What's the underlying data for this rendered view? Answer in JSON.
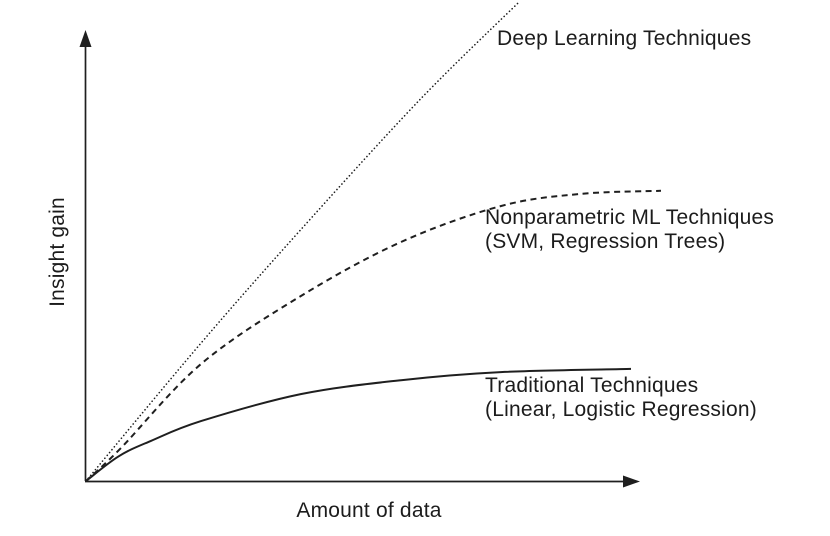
{
  "figure": {
    "background_color": "#ffffff",
    "ink_color": "#1f1f1f"
  },
  "chart_data": {
    "type": "line",
    "title": "",
    "xlabel": "Amount of data",
    "ylabel": "Insight gain",
    "grid": false,
    "legend_position": "inline-annotations",
    "x_axis": {
      "has_arrow": true,
      "ticks": []
    },
    "y_axis": {
      "has_arrow": true,
      "ticks": []
    },
    "xlim": [
      0,
      1
    ],
    "ylim": [
      0,
      1
    ],
    "series": [
      {
        "name": "Deep Learning Techniques",
        "line_style": "dotted",
        "annotation": {
          "line1": "Deep Learning Techniques",
          "line2": ""
        },
        "points": [
          [
            0,
            0
          ],
          [
            0.21,
            0.305
          ],
          [
            0.39,
            0.553
          ],
          [
            0.61,
            0.844
          ],
          [
            0.795,
            1.065
          ]
        ]
      },
      {
        "name": "Nonparametric ML Techniques (SVM, Regression Trees)",
        "line_style": "dashed",
        "annotation": {
          "line1": "Nonparametric ML Techniques",
          "line2": "(SVM, Regression Trees)"
        },
        "points": [
          [
            0,
            0
          ],
          [
            0.064,
            0.073
          ],
          [
            0.211,
            0.26
          ],
          [
            0.394,
            0.411
          ],
          [
            0.578,
            0.531
          ],
          [
            0.761,
            0.611
          ],
          [
            0.908,
            0.638
          ],
          [
            1.055,
            0.645
          ]
        ]
      },
      {
        "name": "Traditional Techniques (Linear, Logistic Regression)",
        "line_style": "solid",
        "annotation": {
          "line1": "Traditional Techniques",
          "line2": "(Linear, Logistic Regression)"
        },
        "points": [
          [
            0,
            0
          ],
          [
            0.06,
            0.055
          ],
          [
            0.119,
            0.089
          ],
          [
            0.211,
            0.133
          ],
          [
            0.394,
            0.193
          ],
          [
            0.578,
            0.224
          ],
          [
            0.761,
            0.242
          ],
          [
            1.0,
            0.249
          ]
        ]
      }
    ]
  }
}
